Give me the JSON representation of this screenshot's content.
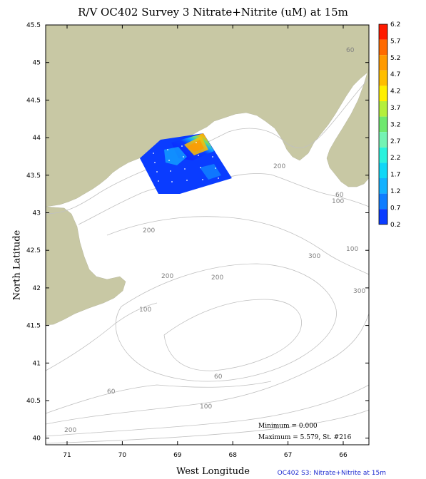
{
  "title": "R/V OC402 Survey 3 Nitrate+Nitrite (uM) at 15m",
  "xlabel": "West Longitude",
  "ylabel": "North Latitude",
  "footer": "OC402 S3: Nitrate+Nitrite at 15m",
  "y_ticks": [
    "45.5",
    "45",
    "44.5",
    "44",
    "43.5",
    "43",
    "42.5",
    "42",
    "41.5",
    "41",
    "40.5",
    "40"
  ],
  "x_ticks": [
    "71",
    "70",
    "69",
    "68",
    "67",
    "66"
  ],
  "colorbar": {
    "labels": [
      "6.2",
      "5.7",
      "5.2",
      "4.7",
      "4.2",
      "3.7",
      "3.2",
      "2.7",
      "2.2",
      "1.7",
      "1.2",
      "0.7",
      "0.2"
    ],
    "colors": [
      "#ff1a00",
      "#ff6a00",
      "#ff9a00",
      "#ffbe00",
      "#ffef00",
      "#b4ef3c",
      "#6ee86e",
      "#74f3b4",
      "#2af2dd",
      "#0fd7f7",
      "#13b1ff",
      "#0f7cff",
      "#0a3cff",
      "#0a1aff"
    ]
  },
  "stats": {
    "minimum": "Minimum = 0.000",
    "maximum": "Maximum = 5.579, St. #216"
  },
  "contour_labels": [
    "60",
    "60",
    "200",
    "100",
    "200",
    "200",
    "300",
    "100",
    "300",
    "200",
    "100",
    "60",
    "60",
    "100",
    "200"
  ],
  "colors": {
    "land": "#c8c8a4",
    "contour": "#c0c0c0",
    "sea": "#ffffff"
  }
}
